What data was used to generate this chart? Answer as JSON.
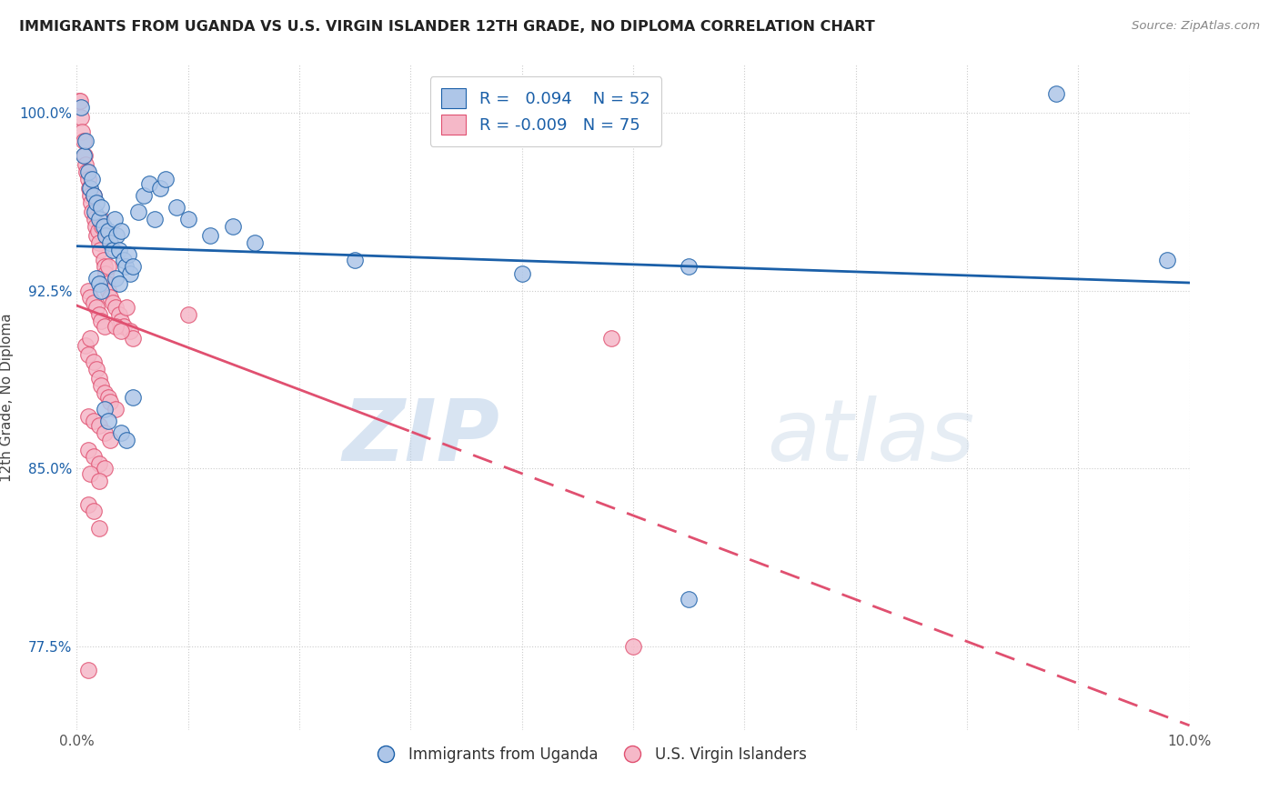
{
  "title": "IMMIGRANTS FROM UGANDA VS U.S. VIRGIN ISLANDER 12TH GRADE, NO DIPLOMA CORRELATION CHART",
  "source": "Source: ZipAtlas.com",
  "ylabel": "12th Grade, No Diploma",
  "y_ticks": [
    77.5,
    85.0,
    92.5,
    100.0
  ],
  "y_tick_labels": [
    "77.5%",
    "85.0%",
    "92.5%",
    "100.0%"
  ],
  "xlim": [
    0.0,
    10.0
  ],
  "ylim": [
    74.0,
    102.0
  ],
  "legend_r_blue": "0.094",
  "legend_n_blue": "52",
  "legend_r_pink": "-0.009",
  "legend_n_pink": "75",
  "blue_color": "#aec6e8",
  "pink_color": "#f5b8c8",
  "blue_line_color": "#1a5fa8",
  "pink_line_color": "#e05070",
  "watermark_zip": "ZIP",
  "watermark_atlas": "atlas",
  "blue_dots": [
    [
      0.04,
      100.2
    ],
    [
      0.06,
      98.2
    ],
    [
      0.08,
      98.8
    ],
    [
      0.1,
      97.5
    ],
    [
      0.12,
      96.8
    ],
    [
      0.14,
      97.2
    ],
    [
      0.15,
      96.5
    ],
    [
      0.16,
      95.8
    ],
    [
      0.18,
      96.2
    ],
    [
      0.2,
      95.5
    ],
    [
      0.22,
      96.0
    ],
    [
      0.24,
      95.2
    ],
    [
      0.26,
      94.8
    ],
    [
      0.28,
      95.0
    ],
    [
      0.3,
      94.5
    ],
    [
      0.32,
      94.2
    ],
    [
      0.34,
      95.5
    ],
    [
      0.36,
      94.8
    ],
    [
      0.38,
      94.2
    ],
    [
      0.4,
      95.0
    ],
    [
      0.42,
      93.8
    ],
    [
      0.44,
      93.5
    ],
    [
      0.46,
      94.0
    ],
    [
      0.48,
      93.2
    ],
    [
      0.5,
      93.5
    ],
    [
      0.18,
      93.0
    ],
    [
      0.2,
      92.8
    ],
    [
      0.22,
      92.5
    ],
    [
      0.25,
      87.5
    ],
    [
      0.28,
      87.0
    ],
    [
      0.35,
      93.0
    ],
    [
      0.38,
      92.8
    ],
    [
      0.4,
      86.5
    ],
    [
      0.45,
      86.2
    ],
    [
      0.5,
      88.0
    ],
    [
      0.55,
      95.8
    ],
    [
      0.6,
      96.5
    ],
    [
      0.65,
      97.0
    ],
    [
      0.7,
      95.5
    ],
    [
      0.75,
      96.8
    ],
    [
      0.8,
      97.2
    ],
    [
      0.9,
      96.0
    ],
    [
      1.0,
      95.5
    ],
    [
      1.2,
      94.8
    ],
    [
      1.4,
      95.2
    ],
    [
      1.6,
      94.5
    ],
    [
      2.5,
      93.8
    ],
    [
      4.0,
      93.2
    ],
    [
      5.5,
      79.5
    ],
    [
      5.5,
      93.5
    ],
    [
      8.8,
      100.8
    ],
    [
      9.8,
      93.8
    ]
  ],
  "pink_dots": [
    [
      0.02,
      100.5
    ],
    [
      0.03,
      100.5
    ],
    [
      0.04,
      99.8
    ],
    [
      0.05,
      99.2
    ],
    [
      0.06,
      98.8
    ],
    [
      0.07,
      98.2
    ],
    [
      0.08,
      97.8
    ],
    [
      0.09,
      97.5
    ],
    [
      0.1,
      97.2
    ],
    [
      0.11,
      96.8
    ],
    [
      0.12,
      96.5
    ],
    [
      0.13,
      96.2
    ],
    [
      0.14,
      95.8
    ],
    [
      0.15,
      96.5
    ],
    [
      0.16,
      95.5
    ],
    [
      0.17,
      95.2
    ],
    [
      0.18,
      94.8
    ],
    [
      0.19,
      95.0
    ],
    [
      0.2,
      94.5
    ],
    [
      0.21,
      94.2
    ],
    [
      0.22,
      95.5
    ],
    [
      0.23,
      95.2
    ],
    [
      0.24,
      93.8
    ],
    [
      0.25,
      93.5
    ],
    [
      0.26,
      93.2
    ],
    [
      0.27,
      92.8
    ],
    [
      0.28,
      93.5
    ],
    [
      0.1,
      92.5
    ],
    [
      0.12,
      92.2
    ],
    [
      0.15,
      92.0
    ],
    [
      0.18,
      91.8
    ],
    [
      0.2,
      91.5
    ],
    [
      0.22,
      91.2
    ],
    [
      0.25,
      91.0
    ],
    [
      0.28,
      92.5
    ],
    [
      0.3,
      92.2
    ],
    [
      0.32,
      92.0
    ],
    [
      0.35,
      91.8
    ],
    [
      0.38,
      91.5
    ],
    [
      0.4,
      91.2
    ],
    [
      0.42,
      91.0
    ],
    [
      0.45,
      91.8
    ],
    [
      0.48,
      90.8
    ],
    [
      0.5,
      90.5
    ],
    [
      0.08,
      90.2
    ],
    [
      0.1,
      89.8
    ],
    [
      0.12,
      90.5
    ],
    [
      0.15,
      89.5
    ],
    [
      0.18,
      89.2
    ],
    [
      0.2,
      88.8
    ],
    [
      0.22,
      88.5
    ],
    [
      0.25,
      88.2
    ],
    [
      0.28,
      88.0
    ],
    [
      0.3,
      87.8
    ],
    [
      0.35,
      87.5
    ],
    [
      0.1,
      87.2
    ],
    [
      0.15,
      87.0
    ],
    [
      0.2,
      86.8
    ],
    [
      0.25,
      86.5
    ],
    [
      0.3,
      86.2
    ],
    [
      0.1,
      85.8
    ],
    [
      0.15,
      85.5
    ],
    [
      0.2,
      85.2
    ],
    [
      0.25,
      85.0
    ],
    [
      0.12,
      84.8
    ],
    [
      0.2,
      84.5
    ],
    [
      0.1,
      83.5
    ],
    [
      0.15,
      83.2
    ],
    [
      0.1,
      76.5
    ],
    [
      0.2,
      82.5
    ],
    [
      0.35,
      91.0
    ],
    [
      0.4,
      90.8
    ],
    [
      1.0,
      91.5
    ],
    [
      4.8,
      90.5
    ],
    [
      5.0,
      77.5
    ]
  ]
}
